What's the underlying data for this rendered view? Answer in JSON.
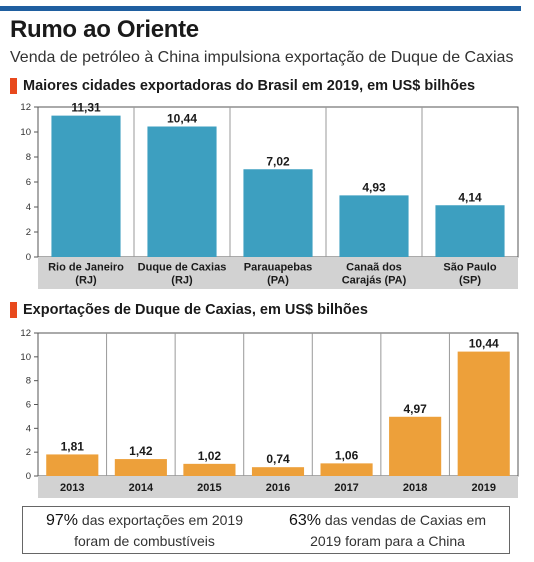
{
  "header": {
    "title": "Rumo ao Oriente",
    "subtitle": "Venda de petróleo à China impulsiona exportação de Duque de Caxias"
  },
  "colors": {
    "accent_bar": "#1f5fa0",
    "section_marker": "#e8491d",
    "bar_blue": "#3d9fc0",
    "bar_orange": "#eda03a",
    "label_band": "#d2d2d2"
  },
  "chart_data": [
    {
      "type": "bar",
      "title": "Maiores cidades exportadoras do Brasil em 2019, em US$ bilhões",
      "categories": [
        [
          "Rio de Janeiro",
          "(RJ)"
        ],
        [
          "Duque de Caxias",
          "(RJ)"
        ],
        [
          "Parauapebas",
          "(PA)"
        ],
        [
          "Canaã dos",
          "Carajás (PA)"
        ],
        [
          "São Paulo",
          "(SP)"
        ]
      ],
      "values": [
        11.31,
        10.44,
        7.02,
        4.93,
        4.14
      ],
      "value_labels": [
        "11,31",
        "10,44",
        "7,02",
        "4,93",
        "4,14"
      ],
      "yticks": [
        0,
        2,
        4,
        6,
        8,
        10,
        12
      ],
      "ylim": [
        0,
        12
      ],
      "grid": true
    },
    {
      "type": "bar",
      "title": "Exportações de Duque de Caxias, em US$ bilhões",
      "categories": [
        [
          "2013"
        ],
        [
          "2014"
        ],
        [
          "2015"
        ],
        [
          "2016"
        ],
        [
          "2017"
        ],
        [
          "2018"
        ],
        [
          "2019"
        ]
      ],
      "values": [
        1.81,
        1.42,
        1.02,
        0.74,
        1.06,
        4.97,
        10.44
      ],
      "value_labels": [
        "1,81",
        "1,42",
        "1,02",
        "0,74",
        "1,06",
        "4,97",
        "10,44"
      ],
      "yticks": [
        0,
        2,
        4,
        6,
        8,
        10,
        12
      ],
      "ylim": [
        0,
        12
      ],
      "grid": true
    }
  ],
  "footer": {
    "left_pct": "97%",
    "left_line1": "das exportações em 2019",
    "left_line2": "foram de combustíveis",
    "right_pct": "63%",
    "right_line1": "das vendas de Caxias em",
    "right_line2": "2019 foram para a China"
  }
}
